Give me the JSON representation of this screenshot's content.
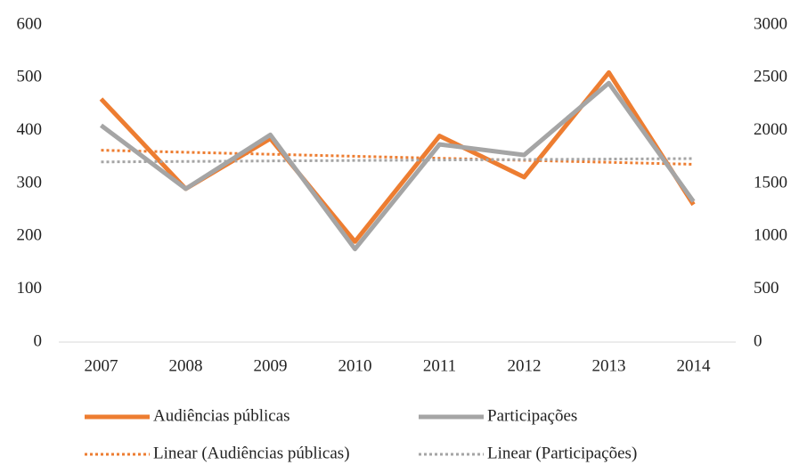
{
  "chart_data": {
    "type": "line",
    "categories": [
      "2007",
      "2008",
      "2009",
      "2010",
      "2011",
      "2012",
      "2013",
      "2014"
    ],
    "series": [
      {
        "name": "Audiências públicas",
        "color": "#ed7d31",
        "axis": "y",
        "values": [
          460,
          290,
          385,
          190,
          390,
          312,
          510,
          260
        ],
        "trendline": {
          "name": "Linear (Audiências públicas)",
          "type": "linear"
        }
      },
      {
        "name": "Participações",
        "color": "#a5a5a5",
        "axis": "y2",
        "values": [
          2050,
          1450,
          1960,
          880,
          1870,
          1770,
          2450,
          1330
        ],
        "trendline": {
          "name": "Linear (Participações)",
          "type": "linear"
        }
      }
    ],
    "ylim": [
      0,
      600
    ],
    "yticks": [
      0,
      100,
      200,
      300,
      400,
      500,
      600
    ],
    "y2lim": [
      0,
      3000
    ],
    "y2ticks": [
      0,
      500,
      1000,
      1500,
      2000,
      2500,
      3000
    ],
    "grid": false,
    "legend": "bottom"
  }
}
